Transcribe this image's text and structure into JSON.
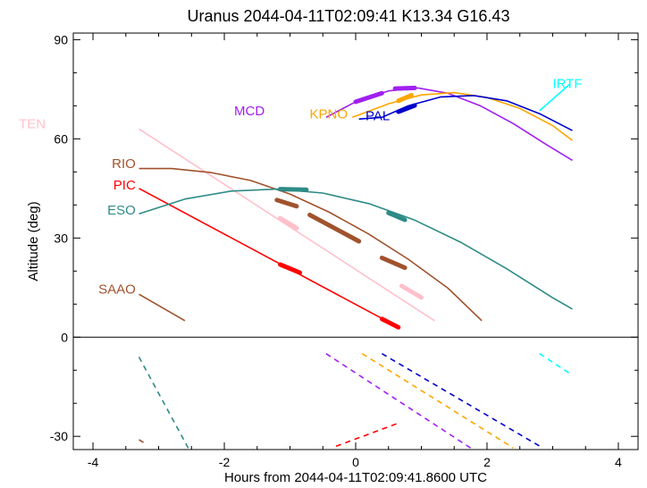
{
  "chart_data": {
    "type": "line",
    "title": "Uranus 2044-04-11T02:09:41  K13.34  G16.43",
    "xlabel": "Hours from 2044-04-11T02:09:41.8600 UTC",
    "ylabel": "Altitude (deg)",
    "xlim": [
      -4.3,
      4.3
    ],
    "ylim": [
      -34,
      92
    ],
    "xticks": [
      -4,
      -2,
      0,
      2,
      4
    ],
    "yticks": [
      -30,
      0,
      30,
      60,
      90
    ],
    "grid": false,
    "zero_line": true,
    "series": [
      {
        "name": "TEN",
        "color": "#ffc0cb",
        "label_at": [
          -4.72,
          64.5
        ],
        "solid": [
          [
            -3.3,
            63
          ],
          [
            1.2,
            5
          ]
        ],
        "thick": [
          [
            [
              -1.15,
              36
            ],
            [
              -0.9,
              33
            ]
          ],
          [
            [
              0.7,
              15.5
            ],
            [
              1.0,
              12
            ]
          ]
        ],
        "dashed": []
      },
      {
        "name": "RIO",
        "color": "#a0522d",
        "label_at": [
          -3.35,
          52.5
        ],
        "solid": [
          [
            -3.3,
            51
          ],
          [
            -2.8,
            51
          ],
          [
            -2.2,
            49.8
          ],
          [
            -1.6,
            47.4
          ],
          [
            -1.0,
            43.3
          ],
          [
            -0.4,
            37.8
          ],
          [
            0.2,
            31.2
          ],
          [
            0.8,
            23.6
          ],
          [
            1.4,
            14.9
          ],
          [
            1.92,
            5
          ]
        ],
        "thick": [
          [
            [
              -1.2,
              41.5
            ],
            [
              -0.9,
              39.6
            ]
          ],
          [
            [
              -0.7,
              37
            ],
            [
              0.05,
              29
            ]
          ],
          [
            [
              0.4,
              24
            ],
            [
              0.75,
              21
            ]
          ]
        ],
        "dashed": [
          [
            [
              -3.3,
              -31
            ],
            [
              -3.22,
              -32
            ]
          ]
        ]
      },
      {
        "name": "PIC",
        "color": "#ff0000",
        "label_at": [
          -3.35,
          46
        ],
        "solid": [
          [
            -3.3,
            45
          ],
          [
            0.65,
            3
          ]
        ],
        "thick": [
          [
            [
              -1.15,
              22
            ],
            [
              -0.85,
              19.5
            ]
          ],
          [
            [
              0.4,
              5.5
            ],
            [
              0.65,
              3
            ]
          ]
        ],
        "dashed": [
          [
            [
              -0.3,
              -33
            ],
            [
              0.65,
              -26
            ]
          ]
        ]
      },
      {
        "name": "ESO",
        "color": "#2e8b86",
        "label_at": [
          -3.35,
          38.5
        ],
        "solid": [
          [
            -3.3,
            37.3
          ],
          [
            -2.6,
            41.8
          ],
          [
            -1.9,
            44.2
          ],
          [
            -1.2,
            44.8
          ],
          [
            -0.5,
            43.6
          ],
          [
            0.2,
            40.4
          ],
          [
            0.9,
            35.4
          ],
          [
            1.6,
            28.7
          ],
          [
            2.3,
            20.7
          ],
          [
            3.0,
            11.9
          ],
          [
            3.3,
            8.5
          ]
        ],
        "thick": [
          [
            [
              -1.15,
              44.8
            ],
            [
              -0.75,
              44.6
            ]
          ],
          [
            [
              0.5,
              37.6
            ],
            [
              0.75,
              35.5
            ]
          ]
        ],
        "dashed": [
          [
            [
              -3.3,
              -6
            ],
            [
              -2.55,
              -33.5
            ]
          ]
        ]
      },
      {
        "name": "SAAO",
        "color": "#a0522d",
        "label_at": [
          -3.35,
          14.5
        ],
        "solid": [
          [
            -3.3,
            13
          ],
          [
            -2.6,
            5
          ]
        ],
        "thick": [],
        "dashed": []
      },
      {
        "name": "MCD",
        "color": "#a020f0",
        "label_at": [
          -1.85,
          68.5
        ],
        "solid": [
          [
            -0.45,
            66.5
          ],
          [
            0.0,
            71.2
          ],
          [
            0.5,
            74.5
          ],
          [
            0.95,
            75.4
          ],
          [
            1.4,
            73.8
          ],
          [
            1.9,
            70.0
          ],
          [
            2.4,
            64.6
          ],
          [
            2.9,
            58.3
          ],
          [
            3.3,
            53.5
          ]
        ],
        "thick": [
          [
            [
              0.0,
              71.2
            ],
            [
              0.4,
              73.8
            ]
          ],
          [
            [
              0.6,
              75.2
            ],
            [
              0.9,
              75.4
            ]
          ]
        ],
        "dashed": [
          [
            [
              -0.45,
              -5
            ],
            [
              1.75,
              -33.5
            ]
          ]
        ]
      },
      {
        "name": "KPNO",
        "color": "#ffa500",
        "label_at": [
          -0.7,
          67.5
        ],
        "solid": [
          [
            -0.05,
            66.5
          ],
          [
            0.5,
            70.6
          ],
          [
            1.0,
            73.3
          ],
          [
            1.5,
            74.0
          ],
          [
            2.0,
            72.5
          ],
          [
            2.5,
            69.2
          ],
          [
            3.0,
            64.0
          ],
          [
            3.3,
            59.5
          ]
        ],
        "thick": [
          [
            [
              0.65,
              71.5
            ],
            [
              0.85,
              73.2
            ]
          ]
        ],
        "dashed": [
          [
            [
              0.1,
              -5
            ],
            [
              2.4,
              -33.5
            ]
          ]
        ]
      },
      {
        "name": "PAL",
        "color": "#0000cd",
        "label_at": [
          0.15,
          67.0
        ],
        "solid": [
          [
            0.05,
            66
          ],
          [
            0.4,
            66.5
          ],
          [
            0.8,
            70.0
          ],
          [
            1.3,
            72.7
          ],
          [
            1.8,
            73.1
          ],
          [
            2.3,
            71.5
          ],
          [
            2.8,
            67.6
          ],
          [
            3.3,
            62.5
          ]
        ],
        "thick": [
          [
            [
              0.65,
              68.2
            ],
            [
              0.9,
              70.1
            ]
          ]
        ],
        "dashed": [
          [
            [
              0.4,
              -5
            ],
            [
              2.85,
              -33.5
            ]
          ]
        ]
      },
      {
        "name": "IRTF",
        "color": "#00ffff",
        "label_at": [
          3.0,
          76.7
        ],
        "solid": [
          [
            2.8,
            68.5
          ],
          [
            3.27,
            76.7
          ]
        ],
        "thick": [],
        "dashed": [
          [
            [
              2.8,
              -5
            ],
            [
              3.3,
              -11.5
            ]
          ]
        ]
      }
    ]
  }
}
